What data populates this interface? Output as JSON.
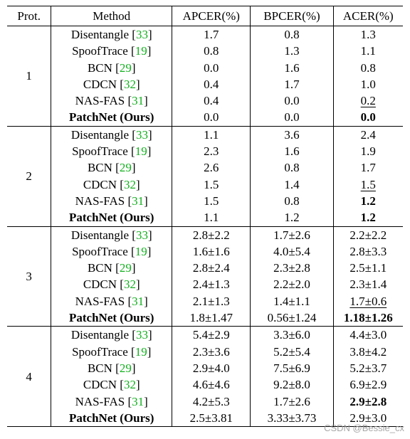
{
  "headers": {
    "protocol": "Prot.",
    "method": "Method",
    "apcer": "APCER(%)",
    "bpcer": "BPCER(%)",
    "acer": "ACER(%)"
  },
  "groups": [
    {
      "protocol": "1",
      "rows": [
        {
          "method": "Disentangle",
          "ref": "33",
          "apcer": "1.7",
          "bpcer": "0.8",
          "acer": "1.3"
        },
        {
          "method": "SpoofTrace",
          "ref": "19",
          "apcer": "0.8",
          "bpcer": "1.3",
          "acer": "1.1"
        },
        {
          "method": "BCN",
          "ref": "29",
          "apcer": "0.0",
          "bpcer": "1.6",
          "acer": "0.8"
        },
        {
          "method": "CDCN",
          "ref": "32",
          "apcer": "0.4",
          "bpcer": "1.7",
          "acer": "1.0"
        },
        {
          "method": "NAS-FAS",
          "ref": "31",
          "apcer": "0.4",
          "bpcer": "0.0",
          "acer": "0.2"
        },
        {
          "method": "PatchNet (Ours)",
          "ref": "",
          "apcer": "0.0",
          "bpcer": "0.0",
          "acer": "0.0"
        }
      ]
    },
    {
      "protocol": "2",
      "rows": [
        {
          "method": "Disentangle",
          "ref": "33",
          "apcer": "1.1",
          "bpcer": "3.6",
          "acer": "2.4"
        },
        {
          "method": "SpoofTrace",
          "ref": "19",
          "apcer": "2.3",
          "bpcer": "1.6",
          "acer": "1.9"
        },
        {
          "method": "BCN",
          "ref": "29",
          "apcer": "2.6",
          "bpcer": "0.8",
          "acer": "1.7"
        },
        {
          "method": "CDCN",
          "ref": "32",
          "apcer": "1.5",
          "bpcer": "1.4",
          "acer": "1.5"
        },
        {
          "method": "NAS-FAS",
          "ref": "31",
          "apcer": "1.5",
          "bpcer": "0.8",
          "acer": "1.2"
        },
        {
          "method": "PatchNet (Ours)",
          "ref": "",
          "apcer": "1.1",
          "bpcer": "1.2",
          "acer": "1.2"
        }
      ]
    },
    {
      "protocol": "3",
      "rows": [
        {
          "method": "Disentangle",
          "ref": "33",
          "apcer": "2.8±2.2",
          "bpcer": "1.7±2.6",
          "acer": "2.2±2.2"
        },
        {
          "method": "SpoofTrace",
          "ref": "19",
          "apcer": "1.6±1.6",
          "bpcer": "4.0±5.4",
          "acer": "2.8±3.3"
        },
        {
          "method": "BCN",
          "ref": "29",
          "apcer": "2.8±2.4",
          "bpcer": "2.3±2.8",
          "acer": "2.5±1.1"
        },
        {
          "method": "CDCN",
          "ref": "32",
          "apcer": "2.4±1.3",
          "bpcer": "2.2±2.0",
          "acer": "2.3±1.4"
        },
        {
          "method": "NAS-FAS",
          "ref": "31",
          "apcer": "2.1±1.3",
          "bpcer": "1.4±1.1",
          "acer": "1.7±0.6"
        },
        {
          "method": "PatchNet (Ours)",
          "ref": "",
          "apcer": "1.8±1.47",
          "bpcer": "0.56±1.24",
          "acer": "1.18±1.26"
        }
      ]
    },
    {
      "protocol": "4",
      "rows": [
        {
          "method": "Disentangle",
          "ref": "33",
          "apcer": "5.4±2.9",
          "bpcer": "3.3±6.0",
          "acer": "4.4±3.0"
        },
        {
          "method": "SpoofTrace",
          "ref": "19",
          "apcer": "2.3±3.6",
          "bpcer": "5.2±5.4",
          "acer": "3.8±4.2"
        },
        {
          "method": "BCN",
          "ref": "29",
          "apcer": "2.9±4.0",
          "bpcer": "7.5±6.9",
          "acer": "5.2±3.7"
        },
        {
          "method": "CDCN",
          "ref": "32",
          "apcer": "4.6±4.6",
          "bpcer": "9.2±8.0",
          "acer": "6.9±2.9"
        },
        {
          "method": "NAS-FAS",
          "ref": "31",
          "apcer": "4.2±5.3",
          "bpcer": "1.7±2.6",
          "acer": "2.9±2.8"
        },
        {
          "method": "PatchNet (Ours)",
          "ref": "",
          "apcer": "2.5±3.81",
          "bpcer": "3.33±3.73",
          "acer": "2.9±3.0"
        }
      ]
    }
  ],
  "emphasis": {
    "bold_acer": [
      [
        0,
        5
      ],
      [
        1,
        4
      ],
      [
        1,
        5
      ],
      [
        2,
        5
      ],
      [
        3,
        4
      ]
    ],
    "underline_acer": [
      [
        0,
        4
      ],
      [
        1,
        3
      ],
      [
        2,
        4
      ]
    ]
  },
  "watermark": "CSDN @Bessie_cx",
  "colors": {
    "ref": "#12b01e"
  }
}
